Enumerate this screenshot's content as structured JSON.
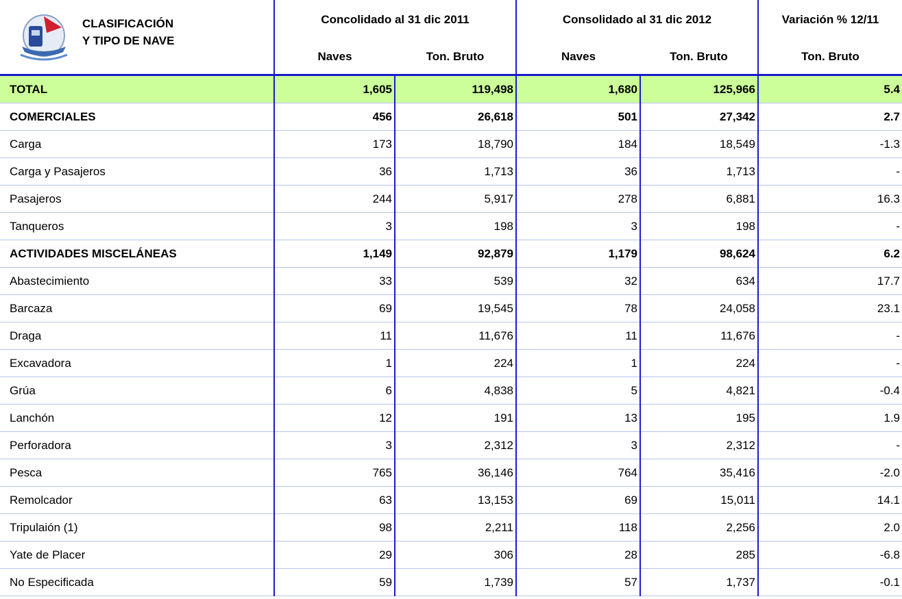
{
  "header": {
    "classification": [
      "CLASIFICACIÓN",
      "Y TIPO DE NAVE"
    ],
    "groups": [
      "Concolidado al 31 dic 2011",
      "Consolidado al 31 dic 2012",
      "Variación % 12/11"
    ],
    "columns": [
      "Naves",
      "Ton. Bruto",
      "Naves",
      "Ton. Bruto",
      "Ton. Bruto"
    ]
  },
  "table": {
    "rows": [
      {
        "cells": [
          "TOTAL",
          "1,605",
          "119,498",
          "1,680",
          "125,966",
          "5.4"
        ],
        "bold": true,
        "highlight": "#ccff99"
      },
      {
        "cells": [
          "COMERCIALES",
          "456",
          "26,618",
          "501",
          "27,342",
          "2.7"
        ],
        "bold": true
      },
      {
        "cells": [
          "Carga",
          "173",
          "18,790",
          "184",
          "18,549",
          "-1.3"
        ]
      },
      {
        "cells": [
          "Carga y Pasajeros",
          "36",
          "1,713",
          "36",
          "1,713",
          "-"
        ]
      },
      {
        "cells": [
          "Pasajeros",
          "244",
          "5,917",
          "278",
          "6,881",
          "16.3"
        ]
      },
      {
        "cells": [
          "Tanqueros",
          "3",
          "198",
          "3",
          "198",
          "-"
        ]
      },
      {
        "cells": [
          "ACTIVIDADES MISCELÁNEAS",
          "1,149",
          "92,879",
          "1,179",
          "98,624",
          "6.2"
        ],
        "bold": true
      },
      {
        "cells": [
          "Abastecimiento",
          "33",
          "539",
          "32",
          "634",
          "17.7"
        ]
      },
      {
        "cells": [
          "Barcaza",
          "69",
          "19,545",
          "78",
          "24,058",
          "23.1"
        ]
      },
      {
        "cells": [
          "Draga",
          "11",
          "11,676",
          "11",
          "11,676",
          "-"
        ]
      },
      {
        "cells": [
          "Excavadora",
          "1",
          "224",
          "1",
          "224",
          "-"
        ]
      },
      {
        "cells": [
          "Grúa",
          "6",
          "4,838",
          "5",
          "4,821",
          "-0.4"
        ]
      },
      {
        "cells": [
          "Lanchón",
          "12",
          "191",
          "13",
          "195",
          "1.9"
        ]
      },
      {
        "cells": [
          "Perforadora",
          "3",
          "2,312",
          "3",
          "2,312",
          "-"
        ]
      },
      {
        "cells": [
          "Pesca",
          "765",
          "36,146",
          "764",
          "35,416",
          "-2.0"
        ]
      },
      {
        "cells": [
          "Remolcador",
          "63",
          "13,153",
          "69",
          "15,011",
          "14.1"
        ]
      },
      {
        "cells": [
          "Tripulaión (1)",
          "98",
          "2,211",
          "118",
          "2,256",
          "2.0"
        ]
      },
      {
        "cells": [
          "Yate de Placer",
          "29",
          "306",
          "28",
          "285",
          "-6.8"
        ]
      },
      {
        "cells": [
          "No Especificada",
          "59",
          "1,739",
          "57",
          "1,737",
          "-0.1"
        ]
      }
    ]
  }
}
